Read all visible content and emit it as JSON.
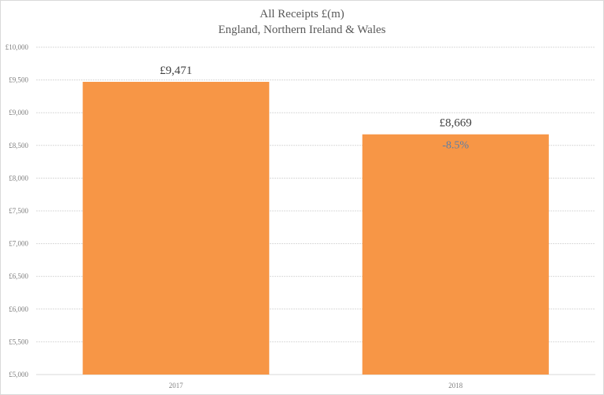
{
  "chart_data": {
    "type": "bar",
    "title": "All Receipts £(m)",
    "subtitle": "England, Northern Ireland & Wales",
    "categories": [
      "2017",
      "2018"
    ],
    "values": [
      9471,
      8669
    ],
    "data_labels": [
      "£9,471",
      "£8,669"
    ],
    "annotations": [
      {
        "category": "2018",
        "text": "-8.5%"
      }
    ],
    "xlabel": "",
    "ylabel": "",
    "ylim": [
      5000,
      10000
    ],
    "yticks": [
      5000,
      5500,
      6000,
      6500,
      7000,
      7500,
      8000,
      8500,
      9000,
      9500,
      10000
    ],
    "ytick_labels": [
      "£5,000",
      "£5,500",
      "£6,000",
      "£6,500",
      "£7,000",
      "£7,500",
      "£8,000",
      "£8,500",
      "£9,000",
      "£9,500",
      "£10,000"
    ],
    "grid": true,
    "legend": "none",
    "bar_color": "#f79646",
    "annotation_color": "#5b7ea8"
  }
}
